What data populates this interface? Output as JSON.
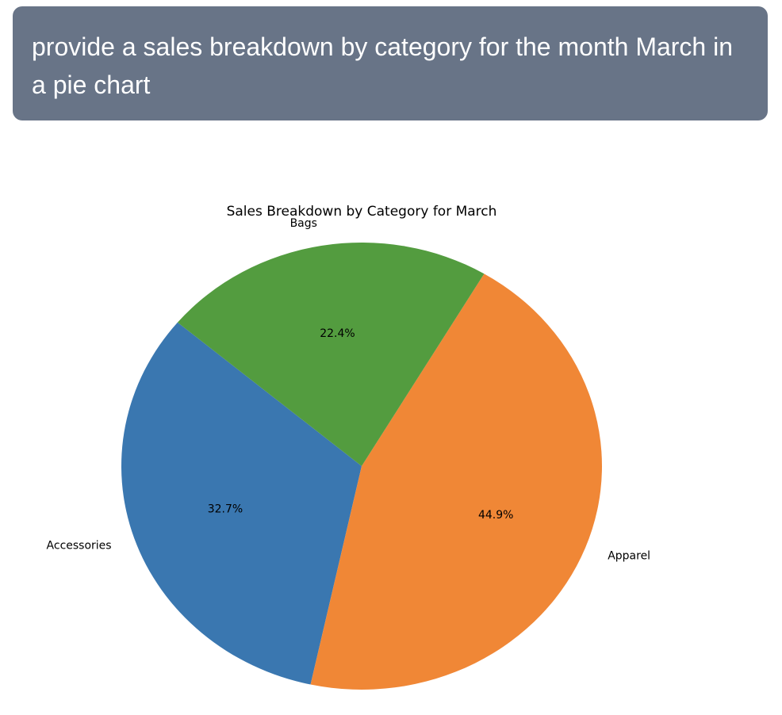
{
  "prompt": {
    "text": "provide a sales breakdown by category for the month March in a pie chart",
    "background": "#687487"
  },
  "chart_data": {
    "type": "pie",
    "title": "Sales Breakdown by Category for March",
    "start_angle_deg": 140,
    "direction": "counterclockwise",
    "slices": [
      {
        "label": "Accessories",
        "value": 32.7,
        "pct_label": "32.7%",
        "color": "#3a77b0"
      },
      {
        "label": "Apparel",
        "value": 44.9,
        "pct_label": "44.9%",
        "color": "#f08736"
      },
      {
        "label": "Bags",
        "value": 22.4,
        "pct_label": "22.4%",
        "color": "#539c3f"
      }
    ]
  }
}
